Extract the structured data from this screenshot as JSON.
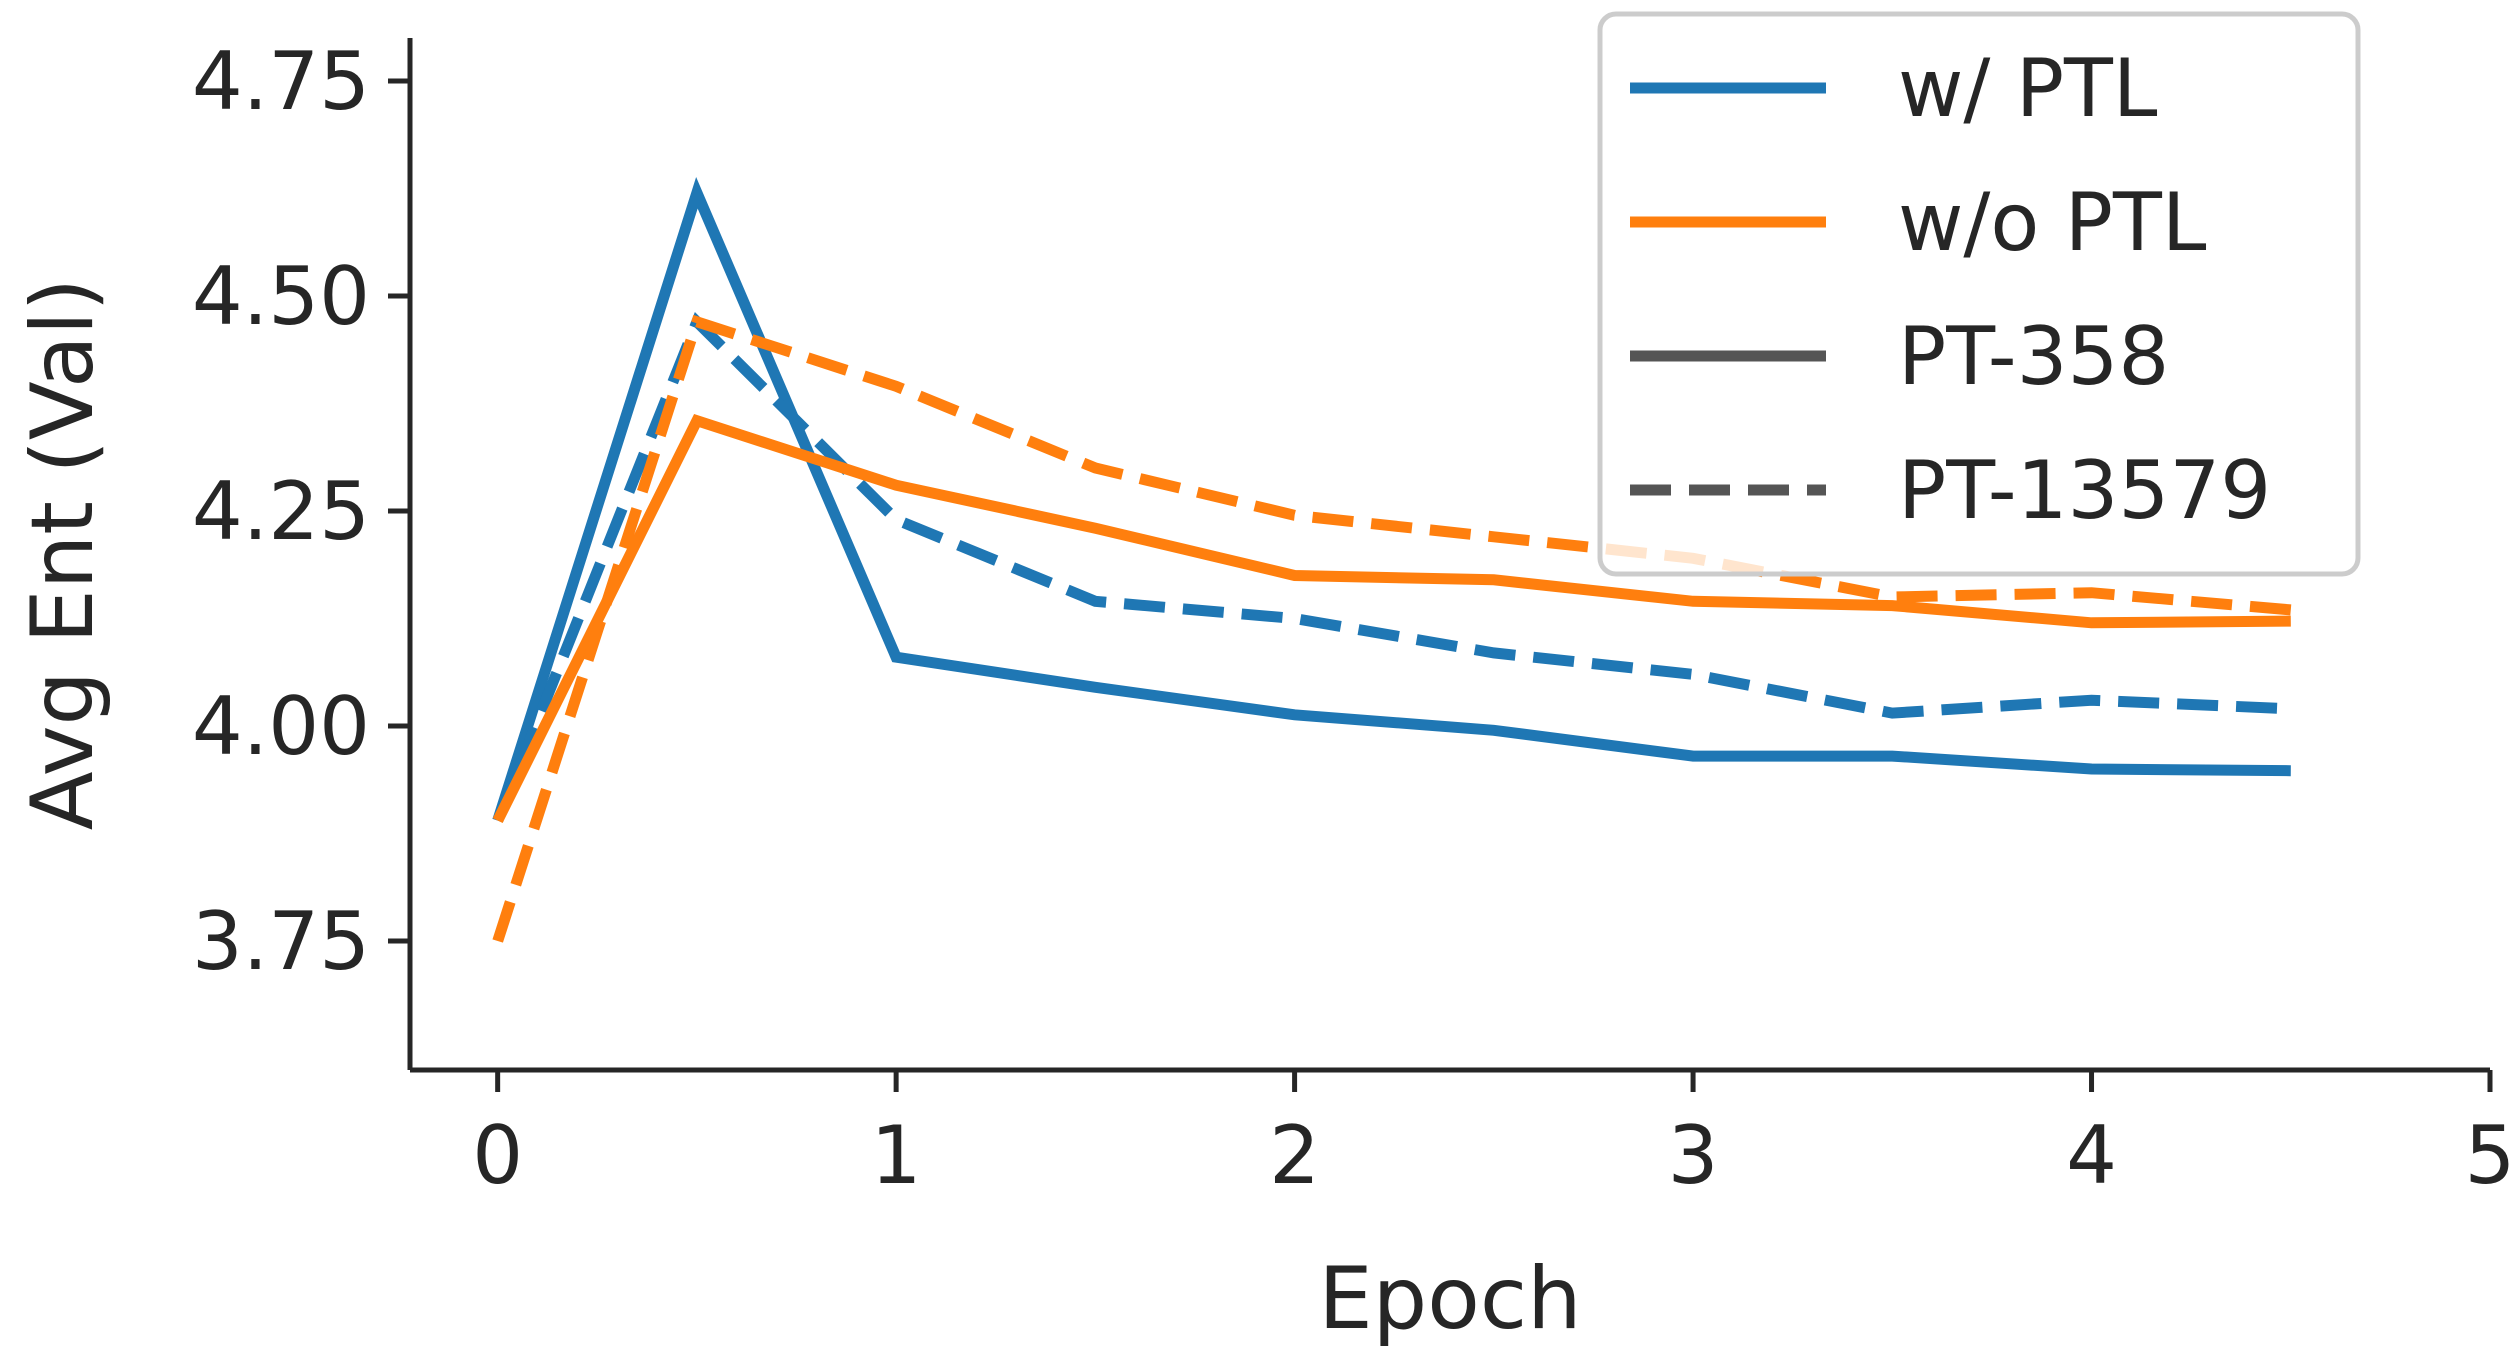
{
  "chart_data": {
    "type": "line",
    "title": "",
    "xlabel": "Epoch",
    "ylabel": "Avg Ent (Val)",
    "xlim": [
      -0.22,
      5
    ],
    "ylim": [
      3.6,
      4.8
    ],
    "xticks": [
      0,
      1,
      2,
      3,
      4,
      5
    ],
    "xtick_labels": [
      "0",
      "1",
      "2",
      "3",
      "4",
      "5"
    ],
    "yticks": [
      3.75,
      4.0,
      4.25,
      4.5,
      4.75
    ],
    "ytick_labels": [
      "3.75",
      "4.00",
      "4.25",
      "4.50",
      "4.75"
    ],
    "grid": false,
    "legend_position": "top-right",
    "legend": [
      {
        "label": "w/ PTL",
        "color": "#1f77b4",
        "style": "solid"
      },
      {
        "label": "w/o PTL",
        "color": "#ff7f0e",
        "style": "solid"
      },
      {
        "label": "PT-358",
        "color": "#555555",
        "style": "solid"
      },
      {
        "label": "PT-13579",
        "color": "#555555",
        "style": "dashed"
      }
    ],
    "series": [
      {
        "name": "w/ PTL, PT-358",
        "color": "#1f77b4",
        "style": "solid",
        "x": [
          0,
          0.5,
          1,
          1.5,
          2,
          2.5,
          3,
          3.5,
          4,
          4.5
        ],
        "y": [
          3.89,
          4.62,
          4.08,
          4.045,
          4.013,
          3.995,
          3.965,
          3.965,
          3.95,
          3.948
        ]
      },
      {
        "name": "w/ PTL, PT-13579",
        "color": "#1f77b4",
        "style": "dashed",
        "x": [
          0,
          0.5,
          1,
          1.5,
          2,
          2.5,
          3,
          3.5,
          4,
          4.5
        ],
        "y": [
          3.89,
          4.47,
          4.24,
          4.145,
          4.125,
          4.085,
          4.06,
          4.015,
          4.03,
          4.02
        ]
      },
      {
        "name": "w/o PTL, PT-358",
        "color": "#ff7f0e",
        "style": "solid",
        "x": [
          0,
          0.5,
          1,
          1.5,
          2,
          2.5,
          3,
          3.5,
          4,
          4.5
        ],
        "y": [
          3.89,
          4.355,
          4.28,
          4.23,
          4.175,
          4.17,
          4.145,
          4.14,
          4.12,
          4.122
        ]
      },
      {
        "name": "w/o PTL, PT-13579",
        "color": "#ff7f0e",
        "style": "dashed",
        "x": [
          0,
          0.5,
          1,
          1.5,
          2,
          2.5,
          3,
          3.5,
          4,
          4.5
        ],
        "y": [
          3.75,
          4.47,
          4.395,
          4.3,
          4.245,
          4.22,
          4.195,
          4.15,
          4.155,
          4.135
        ]
      }
    ]
  }
}
